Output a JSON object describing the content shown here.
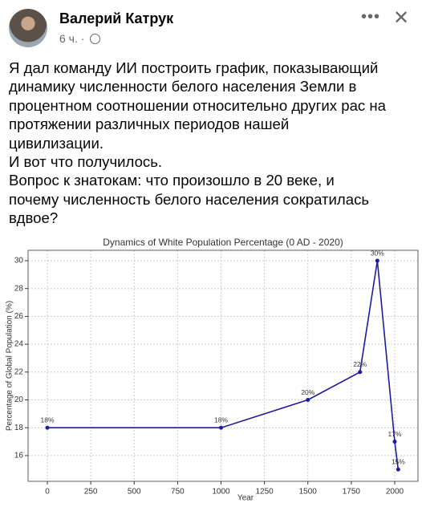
{
  "post": {
    "author": "Валерий Катрук",
    "time": "6 ч.",
    "separator": "·",
    "text_lines": [
      "Я дал команду ИИ построить график, показывающий",
      "динамику численности белого населения Земли в",
      "процентном соотношении относительно других рас на",
      "протяжении различных периодов нашей",
      "цивилизации.",
      "И вот что получилось.",
      "Вопрос к знатокам: что произошло в 20 веке, и",
      "почему численность белого населения сократилась",
      "вдвое?"
    ]
  },
  "chart_data": {
    "type": "line",
    "title": "Dynamics of White Population Percentage (0 AD - 2020)",
    "x_label": "Year",
    "y_label": "Percentage of Global Population (%)",
    "x": [
      0,
      1000,
      1500,
      1800,
      1900,
      2000,
      2020
    ],
    "series": [
      {
        "name": "White Population",
        "color": "#1c1c9c",
        "values": [
          18,
          18,
          20,
          22,
          30,
          17,
          15
        ],
        "value_labels": [
          "18%",
          "18%",
          "20%",
          "22%",
          "30%",
          "17%",
          "15%"
        ]
      }
    ],
    "xlim": [
      -111,
      2134
    ],
    "xticks": [
      0,
      250,
      500,
      750,
      1000,
      1250,
      1500,
      1750,
      2000
    ],
    "ylim": [
      14.15,
      30.75
    ],
    "yticks": [
      16,
      18,
      20,
      22,
      24,
      26,
      28,
      30
    ],
    "grid": true
  }
}
